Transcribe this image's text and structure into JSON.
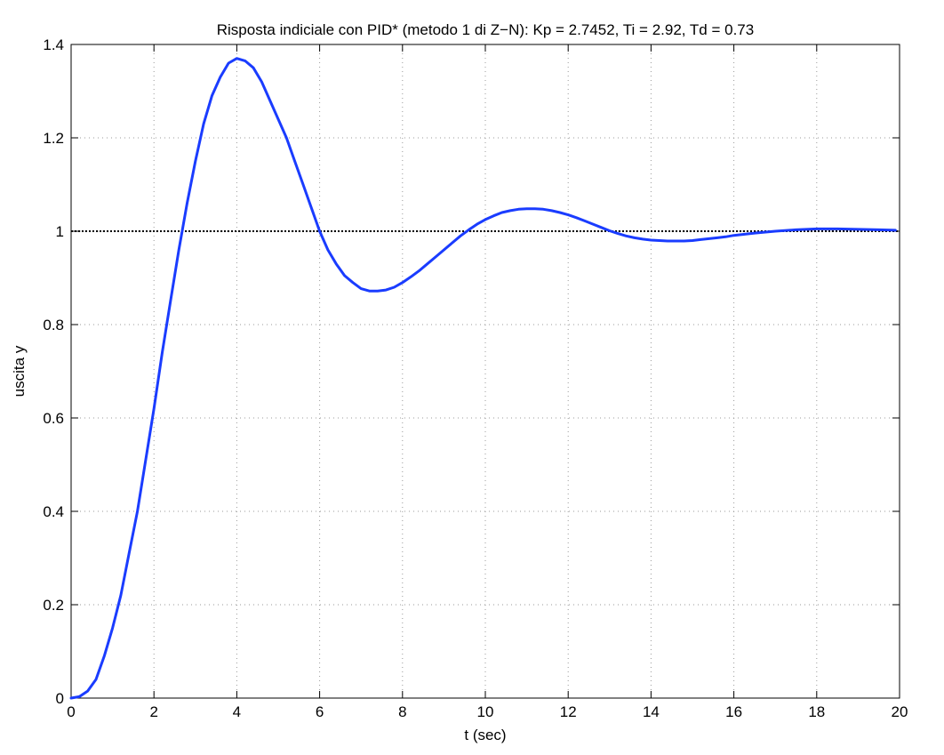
{
  "chart_data": {
    "type": "line",
    "title": "Risposta indiciale con PID* (metodo 1 di Z−N): Kp = 2.7452, Ti = 2.92, Td = 0.73",
    "xlabel": "t (sec)",
    "ylabel": "uscita y",
    "xlim": [
      0,
      20
    ],
    "ylim": [
      0,
      1.4
    ],
    "xticks": [
      "0",
      "2",
      "4",
      "6",
      "8",
      "10",
      "12",
      "14",
      "16",
      "18",
      "20"
    ],
    "yticks": [
      "0",
      "0.2",
      "0.4",
      "0.6",
      "0.8",
      "1",
      "1.2",
      "1.4"
    ],
    "grid": true,
    "colors": {
      "series": "#1a3cff",
      "reference": "#000000",
      "grid": "#9a9a9a"
    },
    "series": [
      {
        "name": "",
        "x": [
          0,
          0.2,
          0.4,
          0.6,
          0.8,
          1.0,
          1.2,
          1.4,
          1.6,
          1.8,
          2.0,
          2.2,
          2.4,
          2.6,
          2.8,
          3.0,
          3.2,
          3.4,
          3.6,
          3.8,
          4.0,
          4.2,
          4.4,
          4.6,
          4.8,
          5.0,
          5.2,
          5.4,
          5.6,
          5.8,
          6.0,
          6.2,
          6.4,
          6.6,
          6.8,
          7.0,
          7.2,
          7.4,
          7.6,
          7.8,
          8.0,
          8.2,
          8.4,
          8.6,
          8.8,
          9.0,
          9.2,
          9.4,
          9.6,
          9.8,
          10.0,
          10.2,
          10.4,
          10.6,
          10.8,
          11.0,
          11.2,
          11.4,
          11.6,
          11.8,
          12.0,
          12.2,
          12.4,
          12.6,
          12.8,
          13.0,
          13.2,
          13.4,
          13.6,
          13.8,
          14.0,
          14.2,
          14.4,
          14.6,
          14.8,
          15.0,
          15.2,
          15.4,
          15.6,
          15.8,
          16.0,
          16.5,
          17.0,
          17.5,
          18.0,
          18.5,
          19.0,
          19.5,
          19.9
        ],
        "y": [
          0,
          0.003,
          0.015,
          0.04,
          0.09,
          0.15,
          0.22,
          0.31,
          0.4,
          0.51,
          0.62,
          0.74,
          0.85,
          0.96,
          1.06,
          1.15,
          1.23,
          1.29,
          1.33,
          1.36,
          1.37,
          1.365,
          1.35,
          1.32,
          1.28,
          1.24,
          1.2,
          1.15,
          1.1,
          1.05,
          1.0,
          0.96,
          0.93,
          0.905,
          0.89,
          0.877,
          0.872,
          0.872,
          0.874,
          0.88,
          0.89,
          0.902,
          0.915,
          0.93,
          0.945,
          0.96,
          0.975,
          0.99,
          1.003,
          1.015,
          1.025,
          1.033,
          1.04,
          1.044,
          1.047,
          1.048,
          1.048,
          1.047,
          1.044,
          1.04,
          1.035,
          1.029,
          1.022,
          1.015,
          1.008,
          1.001,
          0.995,
          0.99,
          0.986,
          0.983,
          0.981,
          0.98,
          0.979,
          0.979,
          0.979,
          0.98,
          0.982,
          0.984,
          0.986,
          0.988,
          0.991,
          0.996,
          1.0,
          1.003,
          1.005,
          1.005,
          1.004,
          1.003,
          1.002
        ]
      }
    ],
    "reference_line": {
      "y": 1.0
    }
  }
}
